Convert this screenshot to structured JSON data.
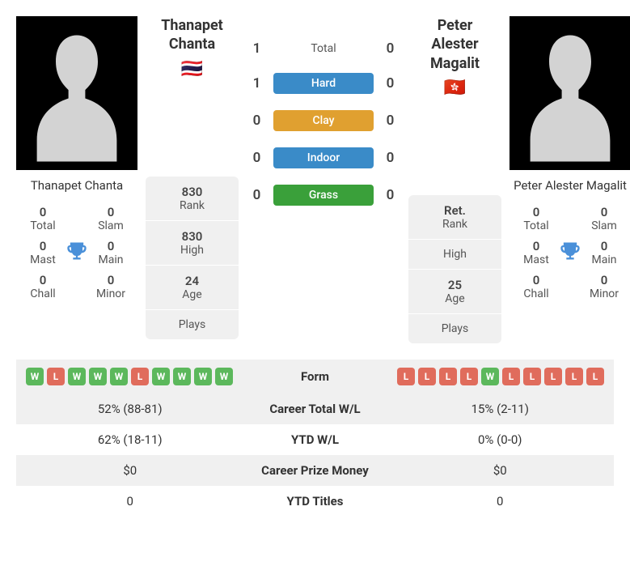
{
  "colors": {
    "win_badge": "#5cb85c",
    "loss_badge": "#e06c5c",
    "hard": "#3a8bc8",
    "clay": "#e0a030",
    "indoor": "#3a8bc8",
    "grass": "#3aa03a",
    "trophy": "#4a90d9",
    "bg_alt": "#f0f0f0"
  },
  "player1": {
    "name": "Thanapet Chanta",
    "first": "Thanapet",
    "last": "Chanta",
    "flag": "🇹🇭",
    "titles": {
      "total": "0",
      "slam": "0",
      "mast": "0",
      "main": "0",
      "chall": "0",
      "minor": "0"
    },
    "rank": "830",
    "high": "830",
    "age": "24",
    "plays": ""
  },
  "player2": {
    "name": "Peter Alester Magalit",
    "first": "Peter Alester",
    "last": "Magalit",
    "flag": "🇭🇰",
    "titles": {
      "total": "0",
      "slam": "0",
      "mast": "0",
      "main": "0",
      "chall": "0",
      "minor": "0"
    },
    "rank": "Ret.",
    "high": "",
    "age": "25",
    "plays": ""
  },
  "labels": {
    "total": "Total",
    "slam": "Slam",
    "mast": "Mast",
    "main": "Main",
    "chall": "Chall",
    "minor": "Minor",
    "rank": "Rank",
    "high": "High",
    "age": "Age",
    "plays": "Plays"
  },
  "h2h": {
    "total": {
      "p1": "1",
      "label": "Total",
      "p2": "0"
    },
    "surfaces": [
      {
        "p1": "1",
        "label": "Hard",
        "color": "#3a8bc8",
        "p2": "0"
      },
      {
        "p1": "0",
        "label": "Clay",
        "color": "#e0a030",
        "p2": "0"
      },
      {
        "p1": "0",
        "label": "Indoor",
        "color": "#3a8bc8",
        "p2": "0"
      },
      {
        "p1": "0",
        "label": "Grass",
        "color": "#3aa03a",
        "p2": "0"
      }
    ]
  },
  "form": {
    "label": "Form",
    "p1": [
      "W",
      "L",
      "W",
      "W",
      "W",
      "L",
      "W",
      "W",
      "W",
      "W"
    ],
    "p2": [
      "L",
      "L",
      "L",
      "L",
      "W",
      "L",
      "L",
      "L",
      "L",
      "L"
    ]
  },
  "stats_rows": [
    {
      "p1": "52% (88-81)",
      "label": "Career Total W/L",
      "p2": "15% (2-11)"
    },
    {
      "p1": "62% (18-11)",
      "label": "YTD W/L",
      "p2": "0% (0-0)"
    },
    {
      "p1": "$0",
      "label": "Career Prize Money",
      "p2": "$0"
    },
    {
      "p1": "0",
      "label": "YTD Titles",
      "p2": "0"
    }
  ]
}
